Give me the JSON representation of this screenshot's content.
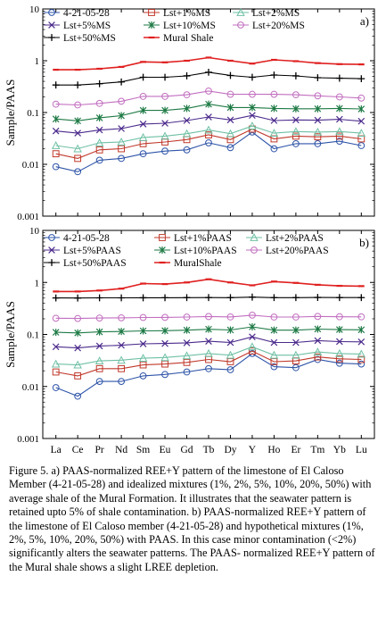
{
  "figure": {
    "caption": "Figure 5. a) PAAS-normalized REE+Y pattern of the limestone of El Caloso Member (4-21-05-28) and idealized mixtures (1%, 2%, 5%, 10%, 20%, 50%) with average shale of the Mural Formation. It illustrates that the seawater pattern is retained upto 5% of shale contamination. b) PAAS-normalized REE+Y pattern of the limestone of El Caloso member (4-21-05-28) and hypothetical mixtures (1%, 2%, 5%, 10%, 20%, 50%) with PAAS. In this case minor contamination (<2%) significantly alters the seawater patterns. The PAAS- normalized REE+Y pattern of the Mural shale shows a slight LREE depletion."
  },
  "colors": {
    "sample": "#2e54a8",
    "lst1": "#c0392b",
    "lst2": "#6fc0a4",
    "lst5": "#4b2a8c",
    "lst10": "#1e7a45",
    "lst20": "#c26fc0",
    "lst50": "#000000",
    "shale": "#e02020"
  },
  "chart_data": [
    {
      "type": "line",
      "panel_label": "a)",
      "ylabel": "Sample/PAAS",
      "yscale": "log",
      "ylim": [
        0.001,
        10
      ],
      "yticks": [
        "10",
        "1",
        "0.1",
        "0.01",
        "0.001"
      ],
      "categories": [
        "La",
        "Ce",
        "Pr",
        "Nd",
        "Sm",
        "Eu",
        "Gd",
        "Tb",
        "Dy",
        "Y",
        "Ho",
        "Er",
        "Tm",
        "Yb",
        "Lu"
      ],
      "series": [
        {
          "name": "4-21-05-28",
          "color_key": "sample",
          "marker": "circle",
          "values": [
            0.009,
            0.0072,
            0.012,
            0.013,
            0.016,
            0.018,
            0.019,
            0.026,
            0.021,
            0.042,
            0.02,
            0.025,
            0.025,
            0.028,
            0.023
          ]
        },
        {
          "name": "Lst+1%MS",
          "color_key": "lst1",
          "marker": "square",
          "values": [
            0.016,
            0.013,
            0.019,
            0.02,
            0.025,
            0.027,
            0.03,
            0.037,
            0.03,
            0.048,
            0.031,
            0.035,
            0.034,
            0.035,
            0.031
          ]
        },
        {
          "name": "Lst+2%MS",
          "color_key": "lst2",
          "marker": "triangle",
          "values": [
            0.023,
            0.02,
            0.026,
            0.027,
            0.033,
            0.035,
            0.039,
            0.046,
            0.039,
            0.055,
            0.04,
            0.043,
            0.042,
            0.043,
            0.04
          ]
        },
        {
          "name": "Lst+5%MS",
          "color_key": "lst5",
          "marker": "x",
          "values": [
            0.044,
            0.04,
            0.046,
            0.049,
            0.06,
            0.062,
            0.07,
            0.082,
            0.072,
            0.088,
            0.07,
            0.072,
            0.071,
            0.074,
            0.068
          ]
        },
        {
          "name": "Lst+10%MS",
          "color_key": "lst10",
          "marker": "asterisk",
          "values": [
            0.075,
            0.069,
            0.079,
            0.087,
            0.11,
            0.11,
            0.12,
            0.145,
            0.125,
            0.125,
            0.12,
            0.118,
            0.118,
            0.12,
            0.117
          ]
        },
        {
          "name": "Lst+20%MS",
          "color_key": "lst20",
          "marker": "circle",
          "values": [
            0.145,
            0.14,
            0.15,
            0.165,
            0.205,
            0.205,
            0.22,
            0.26,
            0.225,
            0.225,
            0.225,
            0.22,
            0.21,
            0.2,
            0.19
          ]
        },
        {
          "name": "Lst+50%MS",
          "color_key": "lst50",
          "marker": "plus",
          "values": [
            0.34,
            0.34,
            0.36,
            0.39,
            0.48,
            0.48,
            0.51,
            0.6,
            0.52,
            0.48,
            0.53,
            0.51,
            0.47,
            0.46,
            0.45
          ]
        },
        {
          "name": "Mural Shale",
          "color_key": "shale",
          "marker": "dash",
          "values": [
            0.67,
            0.67,
            0.7,
            0.76,
            0.95,
            0.93,
            1.0,
            1.15,
            1.0,
            0.88,
            1.04,
            0.98,
            0.9,
            0.86,
            0.85
          ]
        }
      ]
    },
    {
      "type": "line",
      "panel_label": "b)",
      "ylabel": "Sample/PAAS",
      "yscale": "log",
      "ylim": [
        0.001,
        10
      ],
      "yticks": [
        "10",
        "1",
        "0.1",
        "0.01",
        "0.001"
      ],
      "categories": [
        "La",
        "Ce",
        "Pr",
        "Nd",
        "Sm",
        "Eu",
        "Gd",
        "Tb",
        "Dy",
        "Y",
        "Ho",
        "Er",
        "Tm",
        "Yb",
        "Lu"
      ],
      "series": [
        {
          "name": "4-21-05-28",
          "color_key": "sample",
          "marker": "circle",
          "values": [
            0.0095,
            0.0065,
            0.0125,
            0.0125,
            0.016,
            0.017,
            0.019,
            0.022,
            0.021,
            0.043,
            0.024,
            0.023,
            0.033,
            0.028,
            0.027
          ]
        },
        {
          "name": "Lst+1%PAAS",
          "color_key": "lst1",
          "marker": "square",
          "values": [
            0.019,
            0.016,
            0.022,
            0.022,
            0.026,
            0.027,
            0.029,
            0.033,
            0.03,
            0.048,
            0.03,
            0.031,
            0.037,
            0.034,
            0.033
          ]
        },
        {
          "name": "Lst+2%PAAS",
          "color_key": "lst2",
          "marker": "triangle",
          "values": [
            0.027,
            0.026,
            0.031,
            0.032,
            0.035,
            0.036,
            0.039,
            0.043,
            0.04,
            0.058,
            0.04,
            0.04,
            0.046,
            0.043,
            0.042
          ]
        },
        {
          "name": "Lst+5%PAAS",
          "color_key": "lst5",
          "marker": "x",
          "values": [
            0.058,
            0.055,
            0.06,
            0.062,
            0.066,
            0.067,
            0.069,
            0.074,
            0.07,
            0.09,
            0.07,
            0.07,
            0.076,
            0.073,
            0.072
          ]
        },
        {
          "name": "Lst+10%PAAS",
          "color_key": "lst10",
          "marker": "asterisk",
          "values": [
            0.11,
            0.107,
            0.112,
            0.114,
            0.117,
            0.118,
            0.121,
            0.126,
            0.122,
            0.14,
            0.121,
            0.121,
            0.127,
            0.124,
            0.123
          ]
        },
        {
          "name": "Lst+20%PAAS",
          "color_key": "lst20",
          "marker": "circle",
          "values": [
            0.205,
            0.203,
            0.207,
            0.209,
            0.212,
            0.213,
            0.216,
            0.221,
            0.217,
            0.235,
            0.216,
            0.216,
            0.222,
            0.219,
            0.218
          ]
        },
        {
          "name": "Lst+50%PAAS",
          "color_key": "lst50",
          "marker": "plus",
          "values": [
            0.503,
            0.502,
            0.505,
            0.506,
            0.507,
            0.508,
            0.51,
            0.512,
            0.51,
            0.522,
            0.51,
            0.51,
            0.514,
            0.512,
            0.511
          ]
        },
        {
          "name": "MuralShale",
          "color_key": "shale",
          "marker": "dash",
          "values": [
            0.67,
            0.67,
            0.7,
            0.76,
            0.95,
            0.93,
            1.0,
            1.15,
            1.0,
            0.88,
            1.04,
            0.98,
            0.9,
            0.86,
            0.85
          ]
        }
      ]
    }
  ]
}
